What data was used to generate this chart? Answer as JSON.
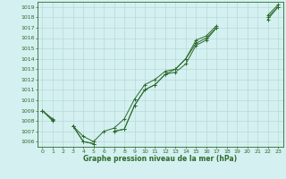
{
  "x": [
    0,
    1,
    2,
    3,
    4,
    5,
    6,
    7,
    8,
    9,
    10,
    11,
    12,
    13,
    14,
    15,
    16,
    17,
    18,
    19,
    20,
    21,
    22,
    23
  ],
  "s1": [
    1009,
    1008,
    null,
    1007.5,
    1006.0,
    1005.8,
    null,
    1007.0,
    1007.2,
    1009.5,
    1011.0,
    1011.5,
    1012.5,
    1012.7,
    1013.5,
    1015.3,
    1015.8,
    1017.0,
    null,
    null,
    null,
    null,
    1017.8,
    1019.0
  ],
  "s2": [
    1009,
    1008.1,
    null,
    1007.5,
    1006.5,
    1006.0,
    1007.0,
    1007.3,
    1008.2,
    1010.1,
    1011.5,
    1012.0,
    1012.8,
    1013.0,
    1014.0,
    1015.5,
    1016.0,
    1017.0,
    null,
    null,
    null,
    null,
    1018.0,
    1019.0
  ],
  "s3": [
    1009,
    1008.2,
    null,
    1007.5,
    1006.0,
    1005.8,
    null,
    1007.0,
    1007.2,
    1009.5,
    1011.0,
    1011.5,
    1012.5,
    1013.0,
    1014.0,
    1015.8,
    1016.2,
    1017.2,
    null,
    null,
    null,
    null,
    1018.2,
    1019.2
  ],
  "ylim": [
    1005.5,
    1019.5
  ],
  "yticks": [
    1006,
    1007,
    1008,
    1009,
    1010,
    1011,
    1012,
    1013,
    1014,
    1015,
    1016,
    1017,
    1018,
    1019
  ],
  "xticks": [
    0,
    1,
    2,
    3,
    4,
    5,
    6,
    7,
    8,
    9,
    10,
    11,
    12,
    13,
    14,
    15,
    16,
    17,
    18,
    19,
    20,
    21,
    22,
    23
  ],
  "xlabel": "Graphe pression niveau de la mer (hPa)",
  "line_color": "#2d6a2d",
  "bg_color": "#d4f0f0",
  "grid_color": "#b8dada",
  "marker": "+",
  "marker_size": 3.5,
  "linewidth": 0.7,
  "tick_fontsize": 4.5,
  "xlabel_fontsize": 5.5
}
